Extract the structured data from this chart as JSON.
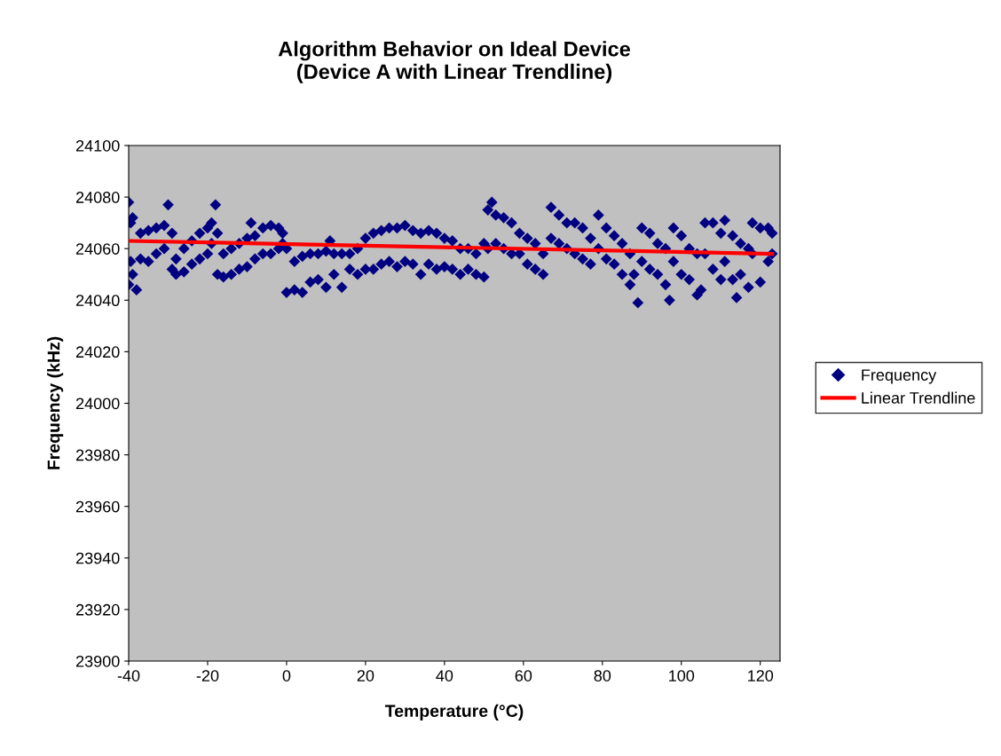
{
  "chart_data": {
    "type": "scatter",
    "title": "Algorithm Behavior on Ideal Device\n(Device A with Linear Trendline)",
    "xlabel": "Temperature (°C)",
    "ylabel": "Frequency (kHz)",
    "xlim": [
      -40,
      125
    ],
    "xticks": [
      -40,
      -20,
      0,
      20,
      40,
      60,
      80,
      100,
      120
    ],
    "ylim": [
      23900,
      24100
    ],
    "yticks": [
      23900,
      23920,
      23940,
      23960,
      23980,
      24000,
      24020,
      24040,
      24060,
      24080,
      24100
    ],
    "grid": false,
    "legend": "right",
    "line_style": "solid",
    "series": [
      {
        "name": "Frequency",
        "marker": "diamond",
        "color": "#000080",
        "x": [
          -40,
          -40,
          -39.5,
          -39.5,
          -39,
          -39,
          -38,
          -37,
          -37,
          -35,
          -35,
          -33,
          -33,
          -31,
          -31,
          -30,
          -29,
          -29,
          -28,
          -28,
          -26,
          -26,
          -24,
          -24,
          -22,
          -22,
          -20,
          -20,
          -19,
          -19,
          -18,
          -17.5,
          -17.5,
          -16,
          -16,
          -14,
          -14,
          -12,
          -12,
          -10,
          -10,
          -9,
          -8,
          -8,
          -6,
          -6,
          -4,
          -4,
          -2,
          -2,
          -1,
          -1,
          0,
          0,
          2,
          2,
          4,
          4,
          6,
          6,
          8,
          8,
          10,
          10,
          11,
          12,
          12,
          14,
          14,
          16,
          16,
          18,
          18,
          20,
          20,
          22,
          22,
          24,
          24,
          26,
          26,
          28,
          28,
          30,
          30,
          32,
          32,
          34,
          34,
          36,
          36,
          38,
          38,
          40,
          40,
          42,
          42,
          44,
          44,
          46,
          46,
          48,
          48,
          50,
          50,
          51,
          51,
          52,
          53,
          53,
          55,
          55,
          57,
          57,
          59,
          59,
          61,
          61,
          63,
          63,
          65,
          65,
          67,
          67,
          69,
          69,
          71,
          71,
          73,
          73,
          75,
          75,
          77,
          77,
          79,
          79,
          81,
          81,
          83,
          83,
          85,
          85,
          87,
          87,
          88,
          89,
          90,
          90,
          92,
          92,
          94,
          94,
          96,
          96,
          97,
          98,
          98,
          100,
          100,
          102,
          102,
          104,
          104,
          105,
          106,
          106,
          108,
          108,
          110,
          110,
          111,
          111,
          113,
          113,
          114,
          115,
          115,
          117,
          117,
          118,
          118,
          120,
          120,
          122,
          122,
          123,
          123
        ],
        "values": [
          24078,
          24046,
          24070,
          24055,
          24072,
          24050,
          24044,
          24066,
          24056,
          24067,
          24055,
          24068,
          24058,
          24069,
          24060,
          24077,
          24066,
          24052,
          24056,
          24050,
          24060,
          24051,
          24063,
          24054,
          24066,
          24056,
          24068,
          24058,
          24070,
          24062,
          24077,
          24066,
          24050,
          24058,
          24049,
          24060,
          24050,
          24062,
          24052,
          24064,
          24053,
          24070,
          24065,
          24056,
          24068,
          24058,
          24069,
          24058,
          24068,
          24060,
          24066,
          24062,
          24060,
          24043,
          24055,
          24044,
          24057,
          24043,
          24058,
          24047,
          24058,
          24048,
          24059,
          24045,
          24063,
          24058,
          24050,
          24058,
          24045,
          24058,
          24052,
          24060,
          24050,
          24064,
          24052,
          24066,
          24052,
          24067,
          24054,
          24068,
          24055,
          24068,
          24053,
          24069,
          24055,
          24067,
          24054,
          24066,
          24050,
          24067,
          24054,
          24066,
          24052,
          24064,
          24053,
          24063,
          24052,
          24060,
          24050,
          24060,
          24052,
          24058,
          24050,
          24062,
          24049,
          24075,
          24060,
          24078,
          24073,
          24062,
          24072,
          24060,
          24070,
          24058,
          24066,
          24058,
          24064,
          24054,
          24062,
          24052,
          24058,
          24050,
          24076,
          24064,
          24073,
          24062,
          24070,
          24060,
          24070,
          24058,
          24068,
          24056,
          24064,
          24054,
          24073,
          24060,
          24068,
          24056,
          24065,
          24054,
          24062,
          24050,
          24058,
          24046,
          24050,
          24039,
          24068,
          24055,
          24066,
          24052,
          24062,
          24050,
          24060,
          24046,
          24040,
          24068,
          24055,
          24065,
          24050,
          24060,
          24048,
          24058,
          24042,
          24044,
          24070,
          24058,
          24070,
          24052,
          24066,
          24048,
          24071,
          24055,
          24065,
          24048,
          24041,
          24062,
          24050,
          24060,
          24045,
          24070,
          24058,
          24068,
          24047,
          24068,
          24055,
          24066,
          24058
        ]
      },
      {
        "name": "Linear Trendline",
        "type": "line",
        "color": "#ff0000",
        "x": [
          -40,
          123
        ],
        "values": [
          24063,
          24058
        ]
      }
    ]
  }
}
